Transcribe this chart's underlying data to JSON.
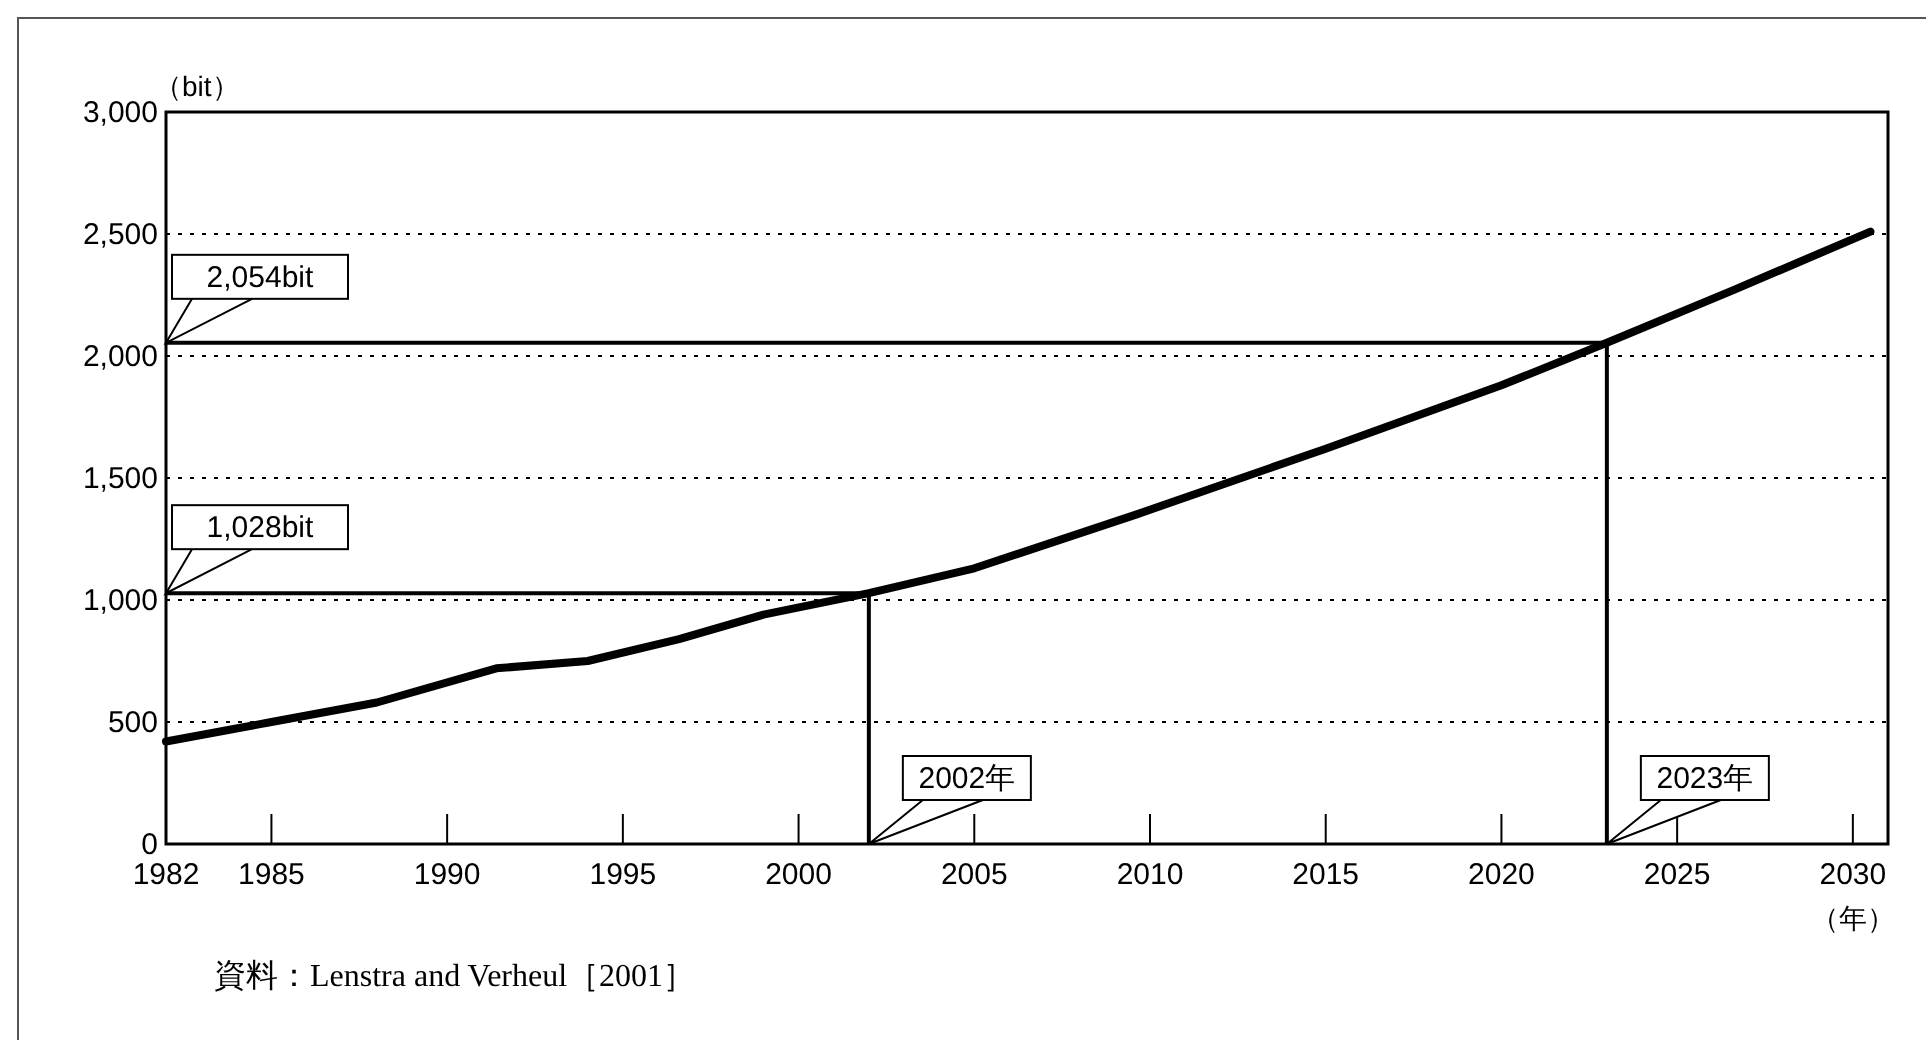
{
  "chart_data": {
    "type": "line",
    "xlabel": "（年）",
    "ylabel": "（bit）",
    "x": [
      1982,
      1985,
      1988,
      1991.4,
      1994,
      1996.6,
      1999,
      2002,
      2005,
      2009.6,
      2015,
      2020,
      2023,
      2026.6,
      2030.5
    ],
    "series": [
      {
        "color": "#000000",
        "values": [
          420,
          500,
          580,
          720,
          750,
          840,
          940,
          1028,
          1130,
          1350,
          1620,
          1880,
          2054,
          2270,
          2510
        ]
      }
    ],
    "xlim": [
      1982,
      2031
    ],
    "xticks": [
      1982,
      1985,
      1990,
      1995,
      2000,
      2005,
      2010,
      2015,
      2020,
      2025,
      2030
    ],
    "ylim": [
      0,
      3000
    ],
    "yticks": [
      {
        "value": 0,
        "label": "0"
      },
      {
        "value": 500,
        "label": "500"
      },
      {
        "value": 1000,
        "label": "1,000"
      },
      {
        "value": 1500,
        "label": "1,500"
      },
      {
        "value": 2000,
        "label": "2,000"
      },
      {
        "value": 2500,
        "label": "2,500"
      },
      {
        "value": 3000,
        "label": "3,000"
      }
    ],
    "grid": "y",
    "marker": "none",
    "line_style": "solid",
    "ref_lines": [
      {
        "axis": "y",
        "value": 2054,
        "label": "2,054bit"
      },
      {
        "axis": "y",
        "value": 1028,
        "label": "1,028bit"
      },
      {
        "axis": "x",
        "value": 2002,
        "label": "2002年"
      },
      {
        "axis": "x",
        "value": 2023,
        "label": "2023年"
      }
    ],
    "annotations": [
      "資料：Lenstra and Verheul［2001］"
    ]
  }
}
